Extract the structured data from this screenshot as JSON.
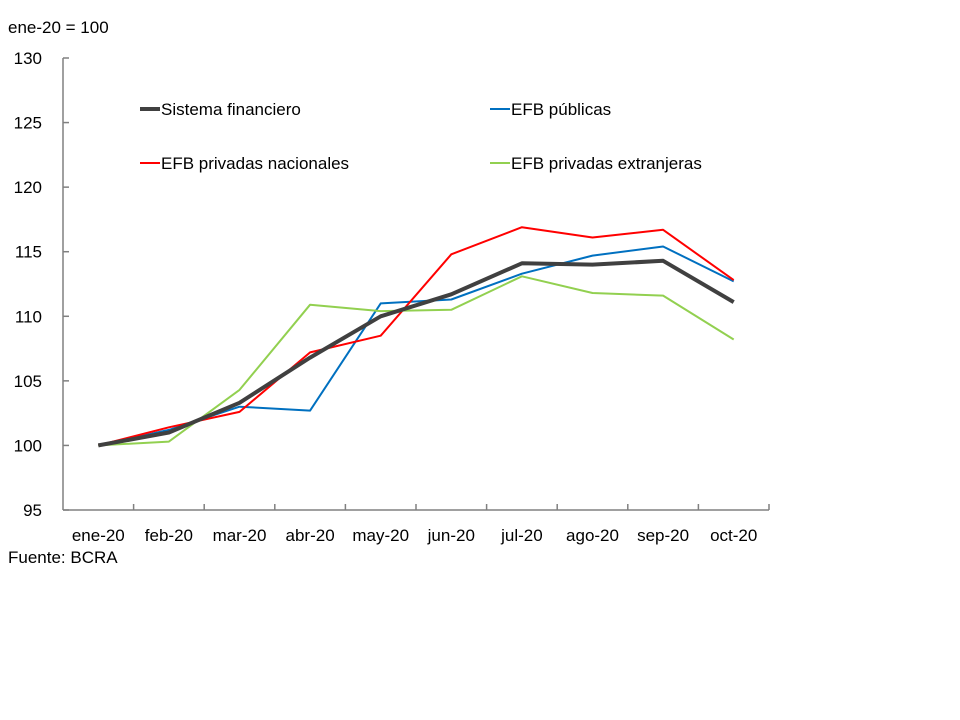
{
  "chart_data": {
    "type": "line",
    "title": "",
    "unit_label": "ene-20 = 100",
    "source": "Fuente: BCRA",
    "xlabel": "",
    "ylabel": "",
    "ylim": [
      95,
      130
    ],
    "yticks": [
      95,
      100,
      105,
      110,
      115,
      120,
      125,
      130
    ],
    "grid": false,
    "legend_position": "top (inside plot, 2 columns)",
    "categories": [
      "ene-20",
      "feb-20",
      "mar-20",
      "abr-20",
      "may-20",
      "jun-20",
      "jul-20",
      "ago-20",
      "sep-20",
      "oct-20"
    ],
    "series": [
      {
        "name": "Sistema financiero",
        "color": "#404040",
        "values": [
          100.0,
          101.0,
          103.3,
          106.8,
          110.0,
          111.7,
          114.1,
          114.0,
          114.3,
          111.1
        ]
      },
      {
        "name": "EFB públicas",
        "color": "#0070C0",
        "values": [
          100.0,
          101.2,
          103.0,
          102.7,
          111.0,
          111.3,
          113.3,
          114.7,
          115.4,
          112.7
        ]
      },
      {
        "name": "EFB privadas nacionales",
        "color": "#FF0000",
        "values": [
          100.0,
          101.4,
          102.6,
          107.2,
          108.5,
          114.8,
          116.9,
          116.1,
          116.7,
          112.8
        ]
      },
      {
        "name": "EFB privadas extranjeras",
        "color": "#92D050",
        "values": [
          100.0,
          100.3,
          104.3,
          110.9,
          110.4,
          110.5,
          113.1,
          111.8,
          111.6,
          108.2
        ]
      }
    ]
  }
}
